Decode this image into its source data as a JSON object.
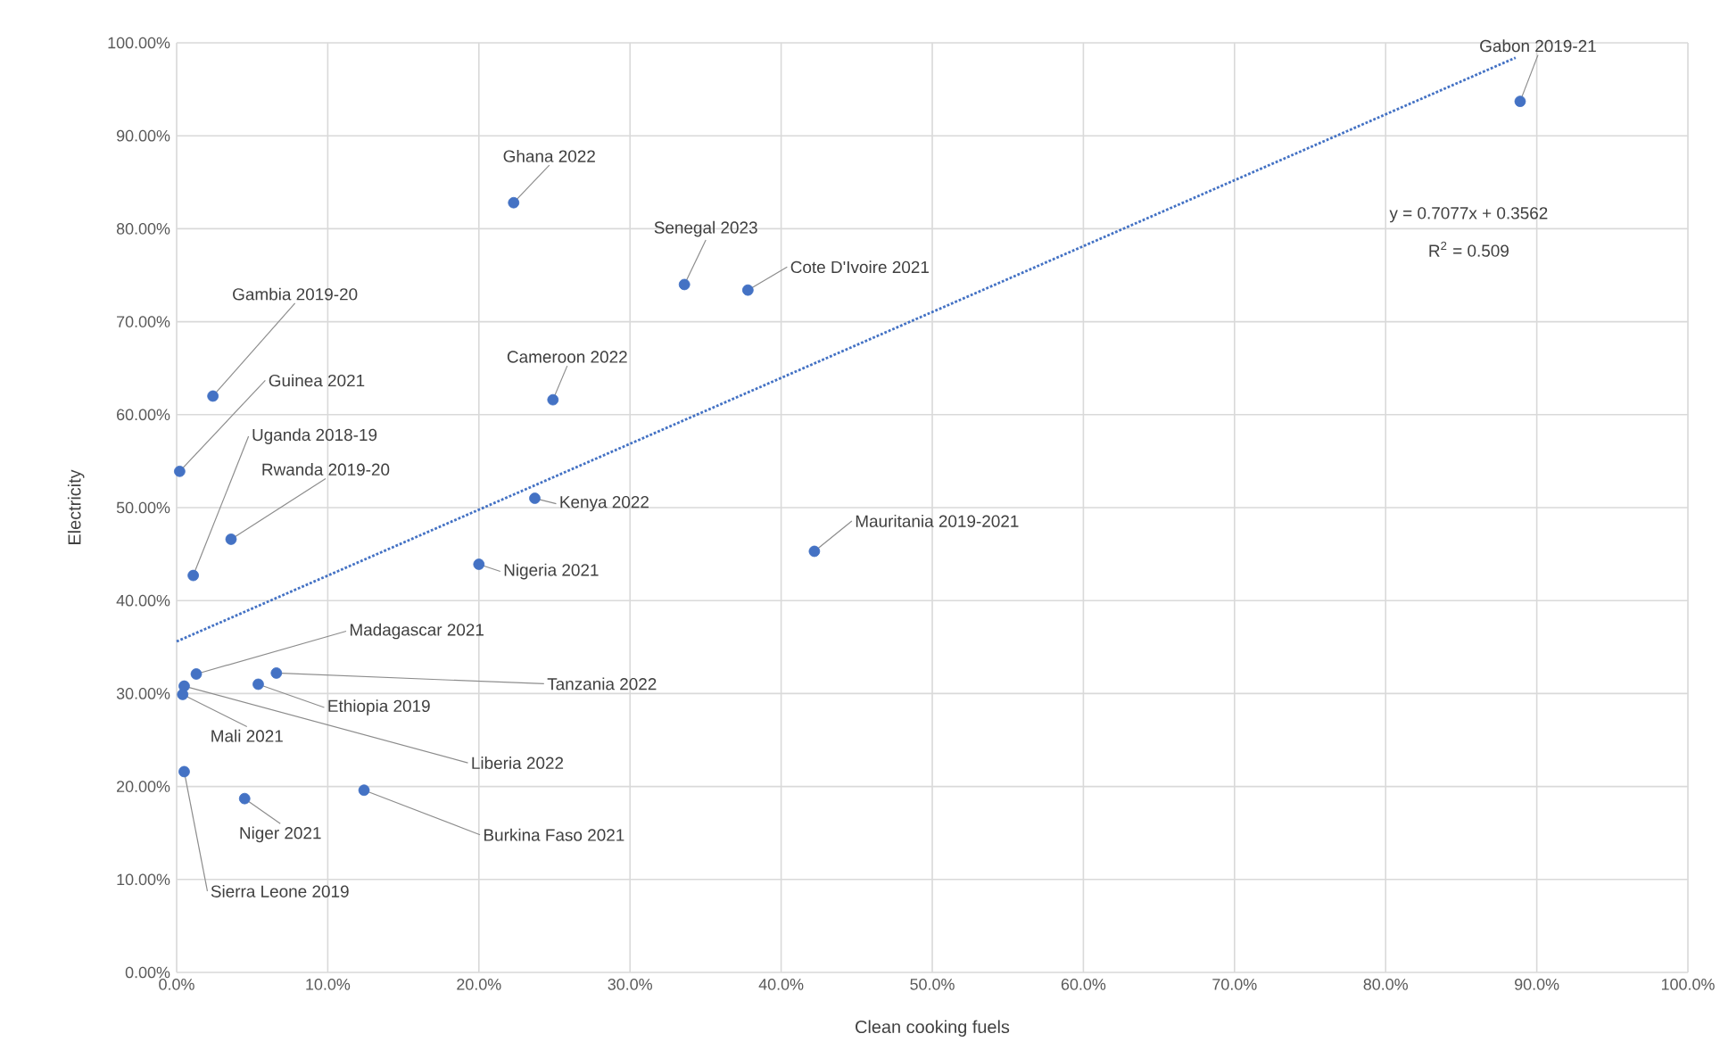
{
  "chart_data": {
    "type": "scatter",
    "xlabel": "Clean cooking fuels",
    "ylabel": "Electricity",
    "xlim": [
      0,
      1
    ],
    "ylim": [
      0,
      1
    ],
    "xticks": [
      {
        "value": 0,
        "label": "0.0%"
      },
      {
        "value": 0.1,
        "label": "10.0%"
      },
      {
        "value": 0.2,
        "label": "20.0%"
      },
      {
        "value": 0.3,
        "label": "30.0%"
      },
      {
        "value": 0.4,
        "label": "40.0%"
      },
      {
        "value": 0.5,
        "label": "50.0%"
      },
      {
        "value": 0.6,
        "label": "60.0%"
      },
      {
        "value": 0.7,
        "label": "70.0%"
      },
      {
        "value": 0.8,
        "label": "80.0%"
      },
      {
        "value": 0.9,
        "label": "90.0%"
      },
      {
        "value": 1,
        "label": "100.0%"
      }
    ],
    "yticks": [
      {
        "value": 0,
        "label": "0.00%"
      },
      {
        "value": 0.1,
        "label": "10.00%"
      },
      {
        "value": 0.2,
        "label": "20.00%"
      },
      {
        "value": 0.3,
        "label": "30.00%"
      },
      {
        "value": 0.4,
        "label": "40.00%"
      },
      {
        "value": 0.5,
        "label": "50.00%"
      },
      {
        "value": 0.6,
        "label": "60.00%"
      },
      {
        "value": 0.7,
        "label": "70.00%"
      },
      {
        "value": 0.8,
        "label": "80.00%"
      },
      {
        "value": 0.9,
        "label": "90.00%"
      },
      {
        "value": 1,
        "label": "100.00%"
      }
    ],
    "grid": true,
    "legend": false,
    "marker": "circle",
    "annotations": [
      "y = 0.7077x + 0.3562",
      "R$^{2}$ = 0.509"
    ],
    "series": [
      {
        "color": "#4472c4",
        "x": [
          0.889,
          0.223,
          0.336,
          0.378,
          0.249,
          0.024,
          0.002,
          0.011,
          0.036,
          0.237,
          0.2,
          0.422,
          0.013,
          0.066,
          0.054,
          0.005,
          0.004,
          0.005,
          0.045,
          0.124
        ],
        "values": [
          0.937,
          0.828,
          0.74,
          0.734,
          0.616,
          0.62,
          0.539,
          0.427,
          0.466,
          0.51,
          0.439,
          0.453,
          0.321,
          0.322,
          0.31,
          0.308,
          0.299,
          0.216,
          0.187,
          0.196
        ],
        "value_labels": [
          "Gabon 2019-21",
          "Ghana 2022",
          "Senegal 2023",
          "Cote D'Ivoire 2021",
          "Cameroon 2022",
          "Gambia 2019-20",
          "Guinea 2021",
          "Uganda 2018-19",
          "Rwanda 2019-20",
          "Kenya 2022",
          "Nigeria 2021",
          "Mauritania 2019-2021",
          "Madagascar 2021",
          "Tanzania 2022",
          "Ethiopia 2019",
          "Liberia 2022",
          "Mali 2021",
          "Sierra Leone 2019",
          "Niger 2021",
          "Burkina Faso 2021"
        ]
      },
      {
        "type": "line",
        "color": "#4472c4",
        "x": [
          0,
          0.886
        ],
        "values": [
          0.356,
          0.984
        ],
        "line_style": "dotted",
        "marker": "none"
      }
    ]
  }
}
